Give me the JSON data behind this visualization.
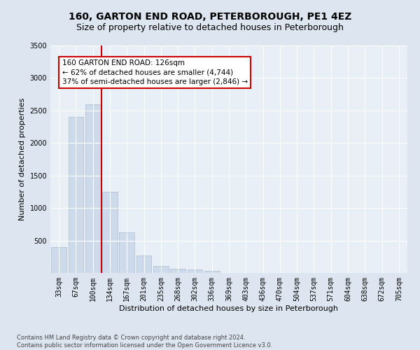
{
  "title": "160, GARTON END ROAD, PETERBOROUGH, PE1 4EZ",
  "subtitle": "Size of property relative to detached houses in Peterborough",
  "xlabel": "Distribution of detached houses by size in Peterborough",
  "ylabel": "Number of detached properties",
  "footer_line1": "Contains HM Land Registry data © Crown copyright and database right 2024.",
  "footer_line2": "Contains public sector information licensed under the Open Government Licence v3.0.",
  "bar_labels": [
    "33sqm",
    "67sqm",
    "100sqm",
    "134sqm",
    "167sqm",
    "201sqm",
    "235sqm",
    "268sqm",
    "302sqm",
    "336sqm",
    "369sqm",
    "403sqm",
    "436sqm",
    "470sqm",
    "504sqm",
    "537sqm",
    "571sqm",
    "604sqm",
    "638sqm",
    "672sqm",
    "705sqm"
  ],
  "bar_values": [
    400,
    2400,
    2600,
    1250,
    630,
    270,
    105,
    60,
    50,
    30,
    0,
    0,
    0,
    0,
    0,
    0,
    0,
    0,
    0,
    0,
    0
  ],
  "bar_color": "#ccdaeb",
  "bar_edgecolor": "#aabcce",
  "vline_color": "#cc0000",
  "annotation_text": "160 GARTON END ROAD: 126sqm\n← 62% of detached houses are smaller (4,744)\n37% of semi-detached houses are larger (2,846) →",
  "box_facecolor": "white",
  "box_edgecolor": "#cc0000",
  "ylim": [
    0,
    3500
  ],
  "yticks": [
    0,
    500,
    1000,
    1500,
    2000,
    2500,
    3000,
    3500
  ],
  "bg_color": "#dde6f0",
  "plot_bg_color": "#e8eff6",
  "title_fontsize": 10,
  "subtitle_fontsize": 9,
  "axis_label_fontsize": 8,
  "tick_fontsize": 7,
  "footer_fontsize": 6,
  "annotation_fontsize": 7.5
}
